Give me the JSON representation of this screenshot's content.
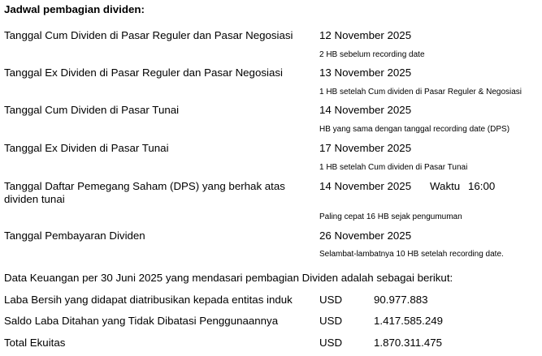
{
  "title": "Jadwal pembagian dividen:",
  "schedule": [
    {
      "label": "Tanggal Cum Dividen di Pasar Reguler dan Pasar Negosiasi",
      "date": "12 November 2025",
      "note": "2 HB sebelum recording date"
    },
    {
      "label": "Tanggal Ex Dividen di Pasar Reguler dan Pasar Negosiasi",
      "date": "13 November 2025",
      "note": "1 HB setelah Cum dividen di Pasar Reguler & Negosiasi"
    },
    {
      "label": "Tanggal Cum Dividen di Pasar Tunai",
      "date": "14 November 2025",
      "note": "HB yang sama dengan tanggal recording date (DPS)"
    },
    {
      "label": "Tanggal Ex Dividen di Pasar Tunai",
      "date": "17 November 2025",
      "note": "1 HB setelah Cum dividen di Pasar Tunai"
    },
    {
      "label": "Tanggal Daftar Pemegang Saham (DPS) yang berhak atas",
      "label2": "dividen tunai",
      "date": "14 November 2025",
      "time_label": "Waktu",
      "time": "16:00",
      "note": "Paling cepat 16 HB sejak pengumuman"
    },
    {
      "label": "Tanggal Pembayaran Dividen",
      "date": "26 November 2025",
      "note": "Selambat-lambatnya 10 HB setelah recording date."
    }
  ],
  "financial": {
    "heading": "Data Keuangan per 30 Juni 2025 yang mendasari pembagian Dividen adalah sebagai berikut:",
    "rows": [
      {
        "label": "Laba Bersih yang didapat diatribusikan kepada entitas induk",
        "currency": "USD",
        "value": "90.977.883"
      },
      {
        "label": "Saldo Laba Ditahan yang Tidak Dibatasi Penggunaannya",
        "currency": "USD",
        "value": "1.417.585.249"
      },
      {
        "label": "Total Ekuitas",
        "currency": "USD",
        "value": "1.870.311.475"
      }
    ]
  }
}
